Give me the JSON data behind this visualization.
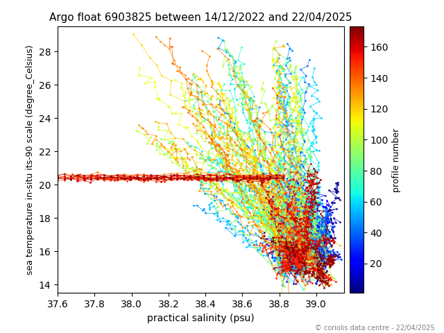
{
  "title": "Argo float 6903825 between 14/12/2022 and 22/04/2025",
  "xlabel": "practical salinity (psu)",
  "ylabel": "sea temperature in-situ its-90 scale (degree_Celsius)",
  "colorbar_label": "profile number",
  "copyright": "© coriolis data centre - 22/04/2025",
  "xlim": [
    37.6,
    39.15
  ],
  "ylim": [
    13.5,
    29.5
  ],
  "xticks": [
    37.6,
    37.8,
    38.0,
    38.2,
    38.4,
    38.6,
    38.8,
    39.0
  ],
  "yticks": [
    14,
    16,
    18,
    20,
    22,
    24,
    26,
    28
  ],
  "cmap": "jet",
  "vmin": 1,
  "vmax": 173,
  "num_profiles": 173,
  "figsize": [
    6.4,
    4.8
  ],
  "dpi": 100,
  "colorbar_ticks": [
    20,
    40,
    60,
    80,
    100,
    120,
    140,
    160
  ]
}
